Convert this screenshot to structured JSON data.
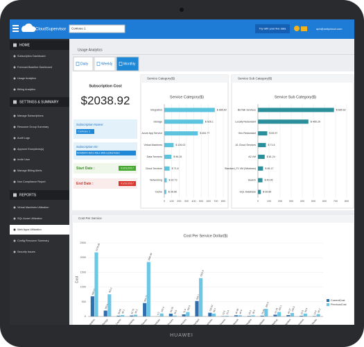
{
  "brand": "CloudSupervisor",
  "topbar": {
    "subscription": "Contoso 1",
    "button": "Try with your live data",
    "user": "aph@unitycloud.com"
  },
  "sidebar": [
    {
      "title": "HOME",
      "items": [
        {
          "label": "Subscription Dashboard"
        },
        {
          "label": "Forecast Baseline Dashboard"
        },
        {
          "label": "Usage Analytics"
        },
        {
          "label": "Billing Analytics"
        }
      ]
    },
    {
      "title": "SETTINGS & SUMMARY",
      "items": [
        {
          "label": "Manage Subscriptions"
        },
        {
          "label": "Resource Group Summary"
        },
        {
          "label": "Audit Logs"
        },
        {
          "label": "Approve Exceptions(s)"
        },
        {
          "label": "Invite User"
        },
        {
          "label": "Manage Billing Alerts"
        },
        {
          "label": "Non Compliance Report"
        }
      ]
    },
    {
      "title": "REPORTS",
      "items": [
        {
          "label": "Virtual Machines Utilization"
        },
        {
          "label": "SQL Azure Utilization"
        },
        {
          "label": "Web Apps Utilization",
          "active": true
        },
        {
          "label": "Config Resource Summary"
        },
        {
          "label": "Security Issues"
        }
      ]
    }
  ],
  "page_title": "Usage Analytics",
  "tabs": [
    {
      "label": "Daily"
    },
    {
      "label": "Weekly"
    },
    {
      "label": "Monthly",
      "active": true
    }
  ],
  "summary": {
    "cost_label": "Subscription Cost",
    "cost": "$2038.92",
    "name_label": "Subscription Name:",
    "name": "Contoso 1",
    "id_label": "Subscription ID:",
    "id": "52435b7b-5c01-45e1-9f39-a12ba7e3e1",
    "start_label": "Start Date :",
    "start": "01/01/2017",
    "end_label": "End Date :",
    "end": "01/31/2017"
  },
  "panels": [
    "Service Category($)",
    "Service Sub Category($)",
    "Cost Per Service"
  ],
  "chart_data": [
    {
      "type": "hbar",
      "title": "Service Category($)",
      "categories": [
        "Integration",
        "Storage",
        "Azure App Service",
        "Virtual Machines",
        "Data Services",
        "Cloud Services",
        "Networking",
        "Cache"
      ],
      "series": [
        {
          "color": "#5bc3de",
          "values": [
            685.62,
            526.1,
            454.77,
            126.02,
            96.15,
            71.6,
            32.73,
            26.66
          ],
          "value_labels": [
            "$ 685.62",
            "$ 526.1",
            "$ 454.77",
            "$ 126.02",
            "$ 96.15",
            "$ 71.6",
            "$ 32.73",
            "$ 26.66"
          ]
        }
      ],
      "xlim": [
        0,
        800
      ],
      "xticks": [
        0,
        100,
        200,
        300,
        400,
        500,
        600,
        700,
        800
      ],
      "grid": true
    },
    {
      "type": "hbar",
      "title": "Service Sub Category($)",
      "categories": [
        "BizTalk Services",
        "Locally Redundant",
        "Geo Redundant",
        "A1 Cloud Services",
        "A2 VM",
        "Standard_F1 VM (Windows)",
        "Search",
        "SQL Database"
      ],
      "series": [
        {
          "color": "#2a8f9b",
          "values": [
            685.62,
            455.25,
            83.97,
            71.6,
            61.24,
            46.17,
            40.95,
            26.66
          ],
          "value_labels": [
            "$ 685.62",
            "$ 455.25",
            "$ 83.97",
            "$ 71.6",
            "$ 61.24",
            "$ 46.17",
            "$ 40.95",
            "$ 26.66"
          ]
        }
      ],
      "xlim": [
        0,
        800
      ],
      "xticks": [
        0,
        100,
        200,
        300,
        400,
        500,
        600,
        700,
        800
      ],
      "grid": true
    },
    {
      "type": "groupedbar",
      "title": "Cost Per Service Dollar($)",
      "ylabel": "Cost",
      "categories": [
        "Integration",
        "Storage",
        "Cache",
        "Networking",
        "Azure App Service",
        "Scheduler",
        "Data Services",
        "Cloud Services",
        "Storage Redundant",
        "Virtual Machines",
        "Media Services",
        "Search",
        "Insights",
        "SQL Database",
        "Backup",
        "Cognitive",
        "Automation",
        "Visual Studio"
      ],
      "series": [
        {
          "name": "CurrentCost",
          "color": "#2f6fad",
          "values": [
            685.62,
            200.4,
            26.66,
            32.73,
            454.77,
            4.2,
            96.15,
            71.6,
            526.1,
            126.02,
            12.5,
            40.95,
            18.3,
            26.66,
            61.24,
            46.17,
            22.8,
            14.6
          ]
        },
        {
          "name": "PreviousCost",
          "color": "#6cc6e6",
          "values": [
            2178.45,
            752.3,
            48.1,
            60.2,
            1850.66,
            102.4,
            30.5,
            150.3,
            1302.8,
            98.7,
            22.4,
            40.6,
            38.2,
            260.5,
            152.1,
            118.9,
            98.4,
            80.2
          ]
        }
      ],
      "ylim": [
        0,
        2500
      ],
      "yticks": [
        0,
        500,
        1000,
        1500,
        2000,
        2500
      ],
      "grid": true,
      "legend": "right"
    }
  ],
  "device": "HUAWEI"
}
